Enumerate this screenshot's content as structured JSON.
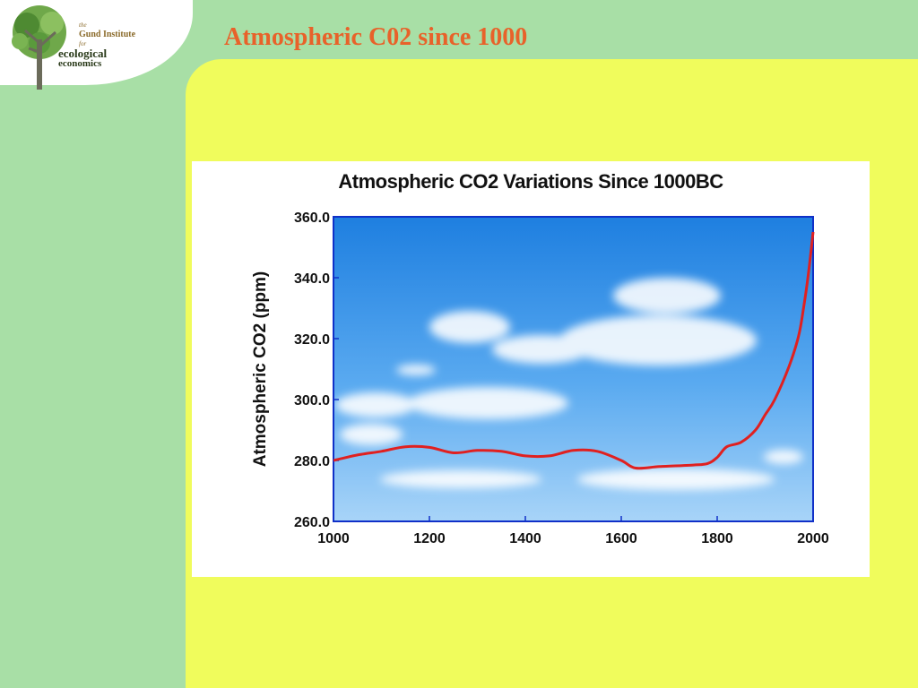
{
  "slide": {
    "title": "Atmospheric C02 since 1000"
  },
  "logo": {
    "the": "the",
    "gund": "Gund Institute",
    "for": "for",
    "line1": "ecological",
    "line2": "economics"
  },
  "colors": {
    "background": "#a8dfa6",
    "panel": "#f0fc5c",
    "title": "#e8622a",
    "curve": "#e02020",
    "plot_frame": "#1030c8"
  },
  "chart_data": {
    "type": "line",
    "title": "Atmospheric CO2 Variations Since 1000BC",
    "xlabel": "",
    "ylabel": "Atmospheric CO2 (ppm)",
    "xlim": [
      1000,
      2000
    ],
    "ylim": [
      260,
      360
    ],
    "xticks": [
      "1000",
      "1200",
      "1400",
      "1600",
      "1800",
      "2000"
    ],
    "yticks": [
      "360.0",
      "340.0",
      "320.0",
      "300.0",
      "280.0",
      "260.0"
    ],
    "grid": false,
    "background": "sky photograph",
    "series": [
      {
        "x": [
          1000,
          1050,
          1100,
          1150,
          1200,
          1250,
          1300,
          1350,
          1400,
          1450,
          1500,
          1550,
          1600,
          1630,
          1680,
          1750,
          1780,
          1800,
          1820,
          1850,
          1880,
          1900,
          1920,
          1950,
          1970,
          1980,
          1990,
          2000
        ],
        "y": [
          280.0,
          281.8,
          283.0,
          284.5,
          284.3,
          282.5,
          283.3,
          283.0,
          281.5,
          281.5,
          283.3,
          283.0,
          280.0,
          277.5,
          278.0,
          278.5,
          279.0,
          281.0,
          284.5,
          286.0,
          290.0,
          295.0,
          300.0,
          311.0,
          321.0,
          330.0,
          341.0,
          355.0
        ]
      }
    ]
  }
}
